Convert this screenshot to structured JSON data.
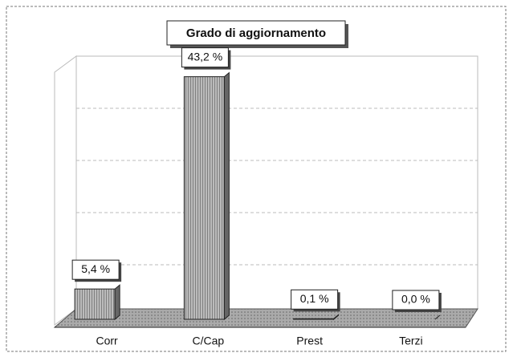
{
  "chart_data": {
    "type": "bar",
    "title": "Grado di aggiornamento",
    "categories": [
      "Corr",
      "C/Cap",
      "Prest",
      "Terzi"
    ],
    "values": [
      5.4,
      43.2,
      0.1,
      0.0
    ],
    "value_labels": [
      "5,4 %",
      "43,2 %",
      "0,1 %",
      "0,0 %"
    ],
    "color": "#888888",
    "ylim": [
      0,
      45
    ]
  }
}
